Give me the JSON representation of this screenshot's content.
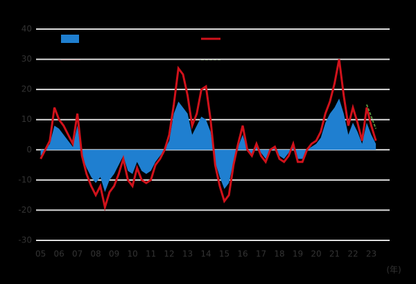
{
  "chart_data": {
    "type": "line",
    "x_label": "(年)",
    "x": [
      2005,
      2005.25,
      2005.5,
      2005.75,
      2006,
      2006.25,
      2006.5,
      2006.75,
      2007,
      2007.25,
      2007.5,
      2007.75,
      2008,
      2008.25,
      2008.5,
      2008.75,
      2009,
      2009.25,
      2009.5,
      2009.75,
      2010,
      2010.25,
      2010.5,
      2010.75,
      2011,
      2011.25,
      2011.5,
      2011.75,
      2012,
      2012.25,
      2012.5,
      2012.75,
      2013,
      2013.25,
      2013.5,
      2013.75,
      2014,
      2014.25,
      2014.5,
      2014.75,
      2015,
      2015.25,
      2015.5,
      2015.75,
      2016,
      2016.25,
      2016.5,
      2016.75,
      2017,
      2017.25,
      2017.5,
      2017.75,
      2018,
      2018.25,
      2018.5,
      2018.75,
      2019,
      2019.25,
      2019.5,
      2019.75,
      2020,
      2020.25,
      2020.5,
      2020.75,
      2021,
      2021.25,
      2021.5,
      2021.75,
      2022,
      2022.25,
      2022.5,
      2022.75,
      2023,
      2023.25
    ],
    "series": [
      {
        "color": "#1f7fd0",
        "fill": true,
        "values": [
          -2,
          0,
          2,
          8,
          7,
          5,
          3,
          1,
          8,
          -2,
          -6,
          -9,
          -11,
          -9,
          -14,
          -10,
          -8,
          -5,
          -2,
          -7,
          -8,
          -4,
          -7,
          -8,
          -7,
          -4,
          -2,
          0,
          3,
          12,
          16,
          14,
          12,
          5,
          8,
          11,
          10,
          6,
          -4,
          -9,
          -13,
          -11,
          -4,
          1,
          5,
          0,
          -2,
          1,
          -1,
          -3,
          0,
          1,
          -2,
          -3,
          -1,
          1,
          -3,
          -3,
          0,
          1,
          2,
          4,
          9,
          12,
          14,
          17,
          12,
          5,
          9,
          6,
          2,
          9,
          5,
          2
        ]
      },
      {
        "color": "#d0121b",
        "fill": false,
        "values": [
          -3,
          0,
          3,
          14,
          10,
          8,
          5,
          2,
          12,
          -2,
          -8,
          -12,
          -15,
          -12,
          -19,
          -14,
          -12,
          -8,
          -3,
          -10,
          -12,
          -6,
          -10,
          -11,
          -10,
          -5,
          -3,
          0,
          5,
          15,
          27,
          25,
          18,
          8,
          12,
          20,
          21,
          10,
          -5,
          -12,
          -17,
          -15,
          -5,
          2,
          8,
          0,
          -2,
          2,
          -2,
          -4,
          0,
          1,
          -3,
          -4,
          -2,
          2,
          -4,
          -4,
          0,
          2,
          3,
          6,
          12,
          16,
          22,
          30,
          18,
          8,
          14,
          9,
          3,
          14,
          8,
          3
        ]
      }
    ],
    "forecast": {
      "color": "#5a8f3c",
      "x": [
        2022.75,
        2023,
        2023.25
      ],
      "values": [
        15,
        11,
        7
      ]
    },
    "xlim": [
      2004.75,
      2024
    ],
    "xticks": [
      {
        "value": 2005,
        "label": "05"
      },
      {
        "value": 2006,
        "label": "06"
      },
      {
        "value": 2007,
        "label": "07"
      },
      {
        "value": 2008,
        "label": "08"
      },
      {
        "value": 2009,
        "label": "09"
      },
      {
        "value": 2010,
        "label": "10"
      },
      {
        "value": 2011,
        "label": "11"
      },
      {
        "value": 2012,
        "label": "12"
      },
      {
        "value": 2013,
        "label": "13"
      },
      {
        "value": 2014,
        "label": "14"
      },
      {
        "value": 2015,
        "label": "15"
      },
      {
        "value": 2016,
        "label": "16"
      },
      {
        "value": 2017,
        "label": "17"
      },
      {
        "value": 2018,
        "label": "18"
      },
      {
        "value": 2019,
        "label": "19"
      },
      {
        "value": 2020,
        "label": "20"
      },
      {
        "value": 2021,
        "label": "21"
      },
      {
        "value": 2022,
        "label": "22"
      },
      {
        "value": 2023,
        "label": "23"
      }
    ],
    "ylim": [
      -30,
      40
    ],
    "yticks": [
      -30,
      -20,
      -10,
      0,
      10,
      20,
      30,
      40
    ],
    "grid": true
  }
}
